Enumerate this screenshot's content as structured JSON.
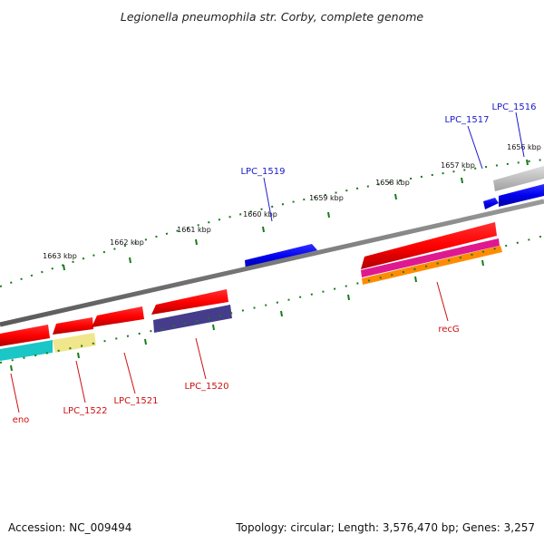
{
  "title": "Legionella pneumophila str. Corby, complete genome",
  "footer": {
    "accession": "Accession: NC_009494",
    "summary": "Topology: circular; Length: 3,576,470 bp; Genes: 3,257"
  },
  "ticks": [
    "1663 kbp",
    "1662 kbp",
    "1661 kbp",
    "1660 kbp",
    "1659 kbp",
    "1658 kbp",
    "1657 kbp",
    "1656 kbp"
  ],
  "genes_top": [
    "LPC_1519",
    "LPC_1517",
    "LPC_1516"
  ],
  "genes_bottom": [
    "eno",
    "LPC_1522",
    "LPC_1521",
    "LPC_1520",
    "recG"
  ],
  "colors": {
    "backbone": "#808080",
    "tick": "#1a7a1a",
    "forward_cds": "#0000ee",
    "reverse_cds": "#ee0000",
    "top_label": "#1a1acc",
    "bottom_label": "#cc1111"
  }
}
